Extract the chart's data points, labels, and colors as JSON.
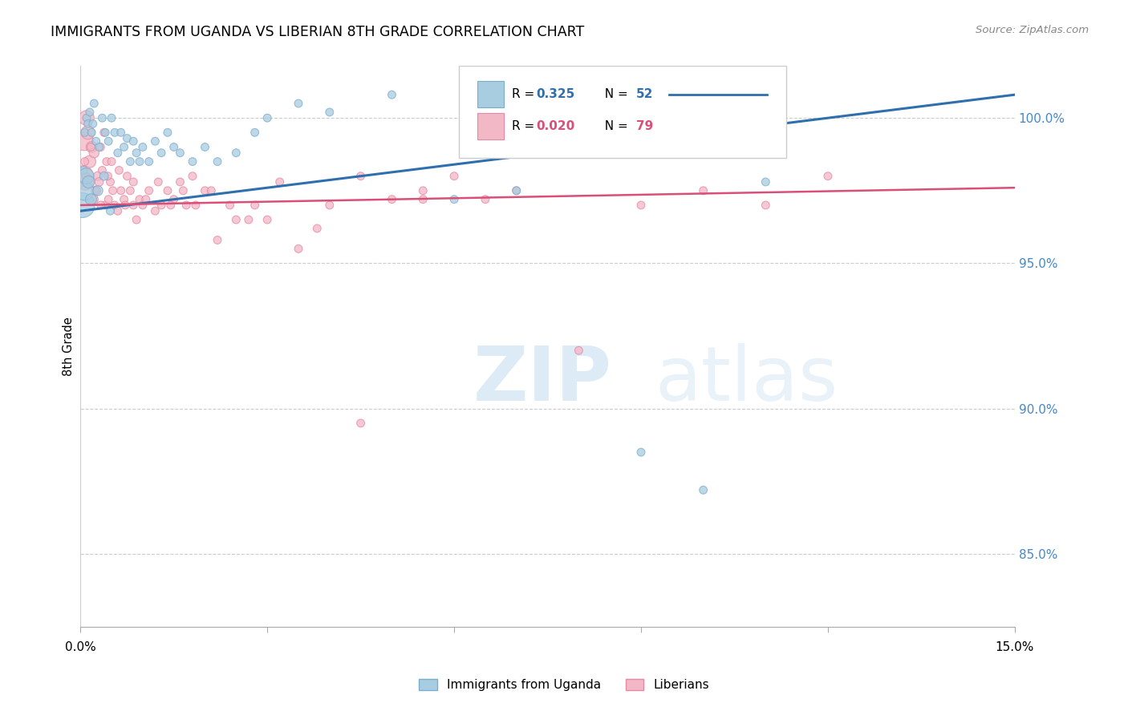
{
  "title": "IMMIGRANTS FROM UGANDA VS LIBERIAN 8TH GRADE CORRELATION CHART",
  "source": "Source: ZipAtlas.com",
  "ylabel": "8th Grade",
  "ylabel_right_vals": [
    85.0,
    90.0,
    95.0,
    100.0
  ],
  "xmin": 0.0,
  "xmax": 15.0,
  "ymin": 82.5,
  "ymax": 101.8,
  "legend_r1": "0.325",
  "legend_n1": "52",
  "legend_r2": "0.020",
  "legend_n2": "79",
  "color_uganda": "#a8cce0",
  "color_liberian": "#f2b8c6",
  "color_uganda_line": "#2f6fad",
  "color_liberian_line": "#d94f78",
  "color_uganda_edge": "#7aaecf",
  "color_liberian_edge": "#e888a4",
  "watermark_zip": "#c8dff0",
  "watermark_atlas": "#c8dff0",
  "uganda_line_x0": 0.0,
  "uganda_line_y0": 96.8,
  "uganda_line_x1": 15.0,
  "uganda_line_y1": 100.8,
  "liberian_line_x0": 0.0,
  "liberian_line_y0": 97.0,
  "liberian_line_x1": 15.0,
  "liberian_line_y1": 97.6,
  "uganda_x": [
    0.05,
    0.07,
    0.1,
    0.12,
    0.15,
    0.18,
    0.2,
    0.22,
    0.25,
    0.3,
    0.35,
    0.4,
    0.45,
    0.5,
    0.55,
    0.6,
    0.65,
    0.7,
    0.75,
    0.8,
    0.85,
    0.9,
    0.95,
    1.0,
    1.1,
    1.2,
    1.3,
    1.4,
    1.5,
    1.6,
    1.8,
    2.0,
    2.2,
    2.5,
    2.8,
    3.0,
    3.5,
    4.0,
    5.0,
    6.0,
    7.0,
    9.0,
    10.0,
    11.0,
    0.03,
    0.06,
    0.09,
    0.13,
    0.17,
    0.28,
    0.38,
    0.48
  ],
  "uganda_y": [
    98.2,
    99.5,
    100.0,
    99.8,
    100.2,
    99.5,
    99.8,
    100.5,
    99.2,
    99.0,
    100.0,
    99.5,
    99.2,
    100.0,
    99.5,
    98.8,
    99.5,
    99.0,
    99.3,
    98.5,
    99.2,
    98.8,
    98.5,
    99.0,
    98.5,
    99.2,
    98.8,
    99.5,
    99.0,
    98.8,
    98.5,
    99.0,
    98.5,
    98.8,
    99.5,
    100.0,
    100.5,
    100.2,
    100.8,
    97.2,
    97.5,
    88.5,
    87.2,
    97.8,
    97.0,
    97.5,
    98.0,
    97.8,
    97.2,
    97.5,
    98.0,
    96.8
  ],
  "uganda_sizes": [
    50,
    50,
    50,
    50,
    50,
    50,
    50,
    50,
    50,
    50,
    50,
    50,
    50,
    50,
    50,
    50,
    50,
    50,
    50,
    50,
    50,
    50,
    50,
    50,
    50,
    50,
    50,
    50,
    50,
    50,
    50,
    50,
    50,
    50,
    50,
    50,
    50,
    50,
    50,
    50,
    50,
    50,
    50,
    50,
    500,
    300,
    200,
    120,
    100,
    80,
    60,
    50
  ],
  "liberian_x": [
    0.04,
    0.06,
    0.08,
    0.1,
    0.12,
    0.15,
    0.18,
    0.2,
    0.22,
    0.25,
    0.28,
    0.3,
    0.32,
    0.35,
    0.38,
    0.4,
    0.42,
    0.45,
    0.48,
    0.5,
    0.55,
    0.6,
    0.65,
    0.7,
    0.75,
    0.8,
    0.85,
    0.9,
    0.95,
    1.0,
    1.1,
    1.2,
    1.3,
    1.4,
    1.5,
    1.6,
    1.7,
    1.8,
    2.0,
    2.2,
    2.5,
    2.8,
    3.0,
    3.5,
    4.0,
    4.5,
    5.0,
    5.5,
    6.0,
    6.5,
    7.0,
    8.0,
    9.0,
    10.0,
    11.0,
    12.0,
    0.07,
    0.09,
    0.14,
    0.17,
    0.24,
    0.33,
    0.44,
    0.52,
    0.62,
    0.72,
    0.85,
    1.05,
    1.25,
    1.45,
    1.65,
    1.85,
    2.1,
    2.4,
    2.7,
    3.2,
    3.8,
    4.5,
    5.5
  ],
  "liberian_y": [
    98.0,
    99.2,
    97.8,
    100.0,
    99.5,
    98.5,
    99.0,
    97.2,
    98.8,
    97.5,
    98.0,
    97.8,
    99.0,
    98.2,
    99.5,
    97.0,
    98.5,
    97.2,
    97.8,
    98.5,
    97.0,
    96.8,
    97.5,
    97.2,
    98.0,
    97.5,
    97.0,
    96.5,
    97.2,
    97.0,
    97.5,
    96.8,
    97.0,
    97.5,
    97.2,
    97.8,
    97.0,
    98.0,
    97.5,
    95.8,
    96.5,
    97.0,
    96.5,
    95.5,
    97.0,
    98.0,
    97.2,
    97.5,
    98.0,
    97.2,
    97.5,
    92.0,
    97.0,
    97.5,
    97.0,
    98.0,
    98.5,
    98.0,
    97.2,
    99.0,
    97.5,
    97.0,
    98.0,
    97.5,
    98.2,
    97.0,
    97.8,
    97.2,
    97.8,
    97.0,
    97.5,
    97.0,
    97.5,
    97.0,
    96.5,
    97.8,
    96.2,
    89.5,
    97.2
  ],
  "liberian_sizes": [
    350,
    280,
    220,
    180,
    150,
    120,
    100,
    90,
    80,
    70,
    65,
    60,
    55,
    50,
    50,
    50,
    50,
    50,
    50,
    50,
    50,
    50,
    50,
    50,
    50,
    50,
    50,
    50,
    50,
    50,
    50,
    50,
    50,
    50,
    50,
    50,
    50,
    50,
    50,
    50,
    50,
    50,
    50,
    50,
    50,
    50,
    50,
    50,
    50,
    50,
    50,
    50,
    50,
    50,
    50,
    50,
    50,
    50,
    50,
    50,
    50,
    50,
    50,
    50,
    50,
    50,
    50,
    50,
    50,
    50,
    50,
    50,
    50,
    50,
    50,
    50,
    50,
    50,
    50
  ]
}
